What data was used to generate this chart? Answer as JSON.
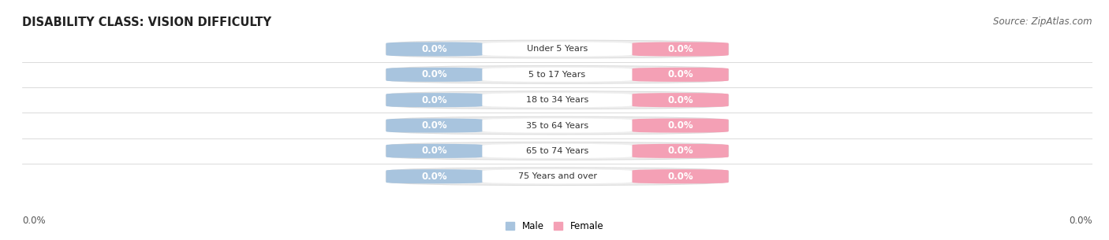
{
  "title": "DISABILITY CLASS: VISION DIFFICULTY",
  "source": "Source: ZipAtlas.com",
  "categories": [
    "Under 5 Years",
    "5 to 17 Years",
    "18 to 34 Years",
    "35 to 64 Years",
    "65 to 74 Years",
    "75 Years and over"
  ],
  "male_values": [
    0.0,
    0.0,
    0.0,
    0.0,
    0.0,
    0.0
  ],
  "female_values": [
    0.0,
    0.0,
    0.0,
    0.0,
    0.0,
    0.0
  ],
  "male_color": "#a8c4de",
  "female_color": "#f4a0b5",
  "male_label": "Male",
  "female_label": "Female",
  "bar_bg_color": "#eeeeee",
  "bar_bg_stroke": "#dddddd",
  "title_fontsize": 10.5,
  "label_fontsize": 8.5,
  "tick_fontsize": 8.5,
  "source_fontsize": 8.5,
  "fig_bg_color": "#ffffff"
}
